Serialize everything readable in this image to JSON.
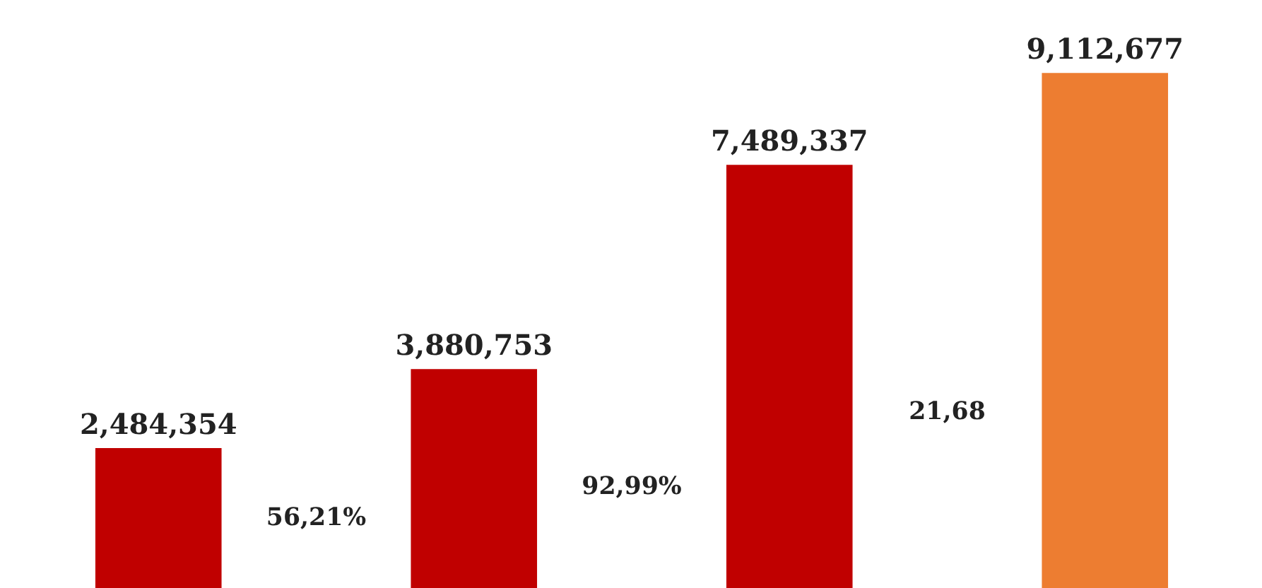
{
  "chart_data": {
    "type": "bar",
    "categories": [
      null,
      null,
      null,
      null
    ],
    "values": [
      2484354,
      3880753,
      7489337,
      9112677
    ],
    "colors": [
      "#c00000",
      "#c00000",
      "#c00000",
      "#ed7d31"
    ],
    "value_labels": [
      "2,484,354",
      "3,880,753",
      "7,489,337",
      "9,112,677"
    ],
    "grid": false,
    "annotations": [
      "56,21%",
      "92,99%",
      "21,68"
    ]
  }
}
